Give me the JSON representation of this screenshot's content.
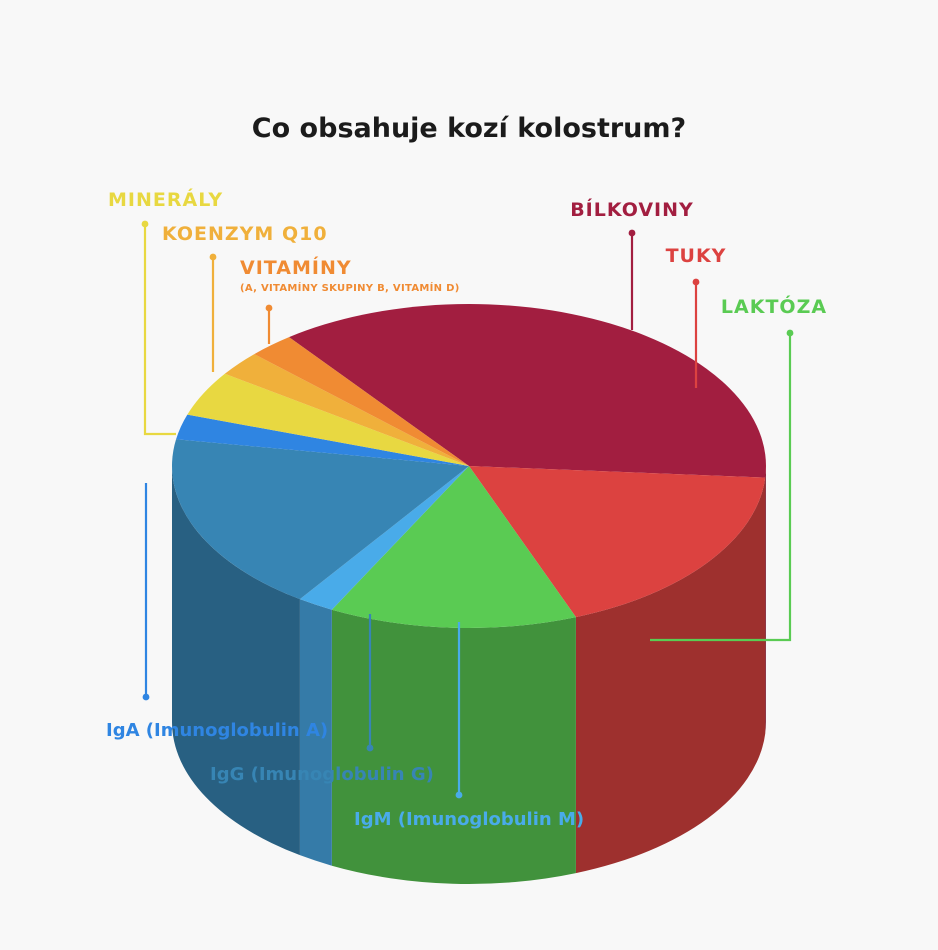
{
  "chart_data": {
    "type": "pie",
    "title": "Co obsahuje kozí kolostrum?",
    "segments": [
      {
        "key": "bilkoviny",
        "label": "BÍLKOVINY",
        "value": 36.5,
        "color": "#a21e40"
      },
      {
        "key": "tuky",
        "label": "TUKY",
        "value": 18.0,
        "color": "#dc4240"
      },
      {
        "key": "laktoza",
        "label": "LAKTÓZA",
        "value": 13.5,
        "color": "#5acb53"
      },
      {
        "key": "igm",
        "label": "IgM (Imunoglobulin M)",
        "value": 2.0,
        "color": "#49abe9"
      },
      {
        "key": "igg",
        "label": "IgG (Imunoglobulin G)",
        "value": 18.0,
        "color": "#3785b4"
      },
      {
        "key": "iga",
        "label": "IgA (Imunoglobulin A)",
        "value": 2.5,
        "color": "#2f85e2"
      },
      {
        "key": "mineraly",
        "label": "MINERÁLY",
        "value": 4.5,
        "color": "#e8d841"
      },
      {
        "key": "koenzym",
        "label": "KOENZYM Q10",
        "value": 2.5,
        "color": "#f0b03b"
      },
      {
        "key": "vitaminy",
        "label": "VITAMÍNY",
        "sublabel": "(A, VITAMÍNY SKUPINY B, VITAMÍN D)",
        "value": 2.5,
        "color": "#f08b33"
      }
    ]
  }
}
